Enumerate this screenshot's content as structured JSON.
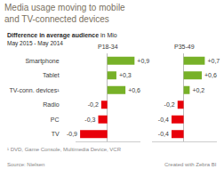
{
  "chart_data": {
    "type": "bar",
    "orientation": "horizontal",
    "title": [
      "Media usage moving to mobile",
      "and TV-connected devices"
    ],
    "subtitle": [
      "Difference in average audience",
      "in Mio"
    ],
    "annotations": [
      "May 2015 - May 2014",
      "¹ DVD, Game Console, Multimedia Device, VCR",
      "Source: Nielsen",
      "Created with Zebra BI"
    ],
    "categories": [
      "Smartphone",
      "Tablet",
      "TV-conn. devices¹",
      "Radio",
      "PC",
      "TV"
    ],
    "series": [
      {
        "name": "P18-34",
        "values": [
          0.9,
          0.3,
          0.6,
          -0.2,
          -0.3,
          -0.9
        ],
        "value_labels": [
          "+0,9",
          "+0,3",
          "+0,6",
          "-0,2",
          "-0,3",
          "-0,9"
        ],
        "colors": [
          "#77b128",
          "#77b128",
          "#77b128",
          "#e8000a",
          "#e8000a",
          "#e8000a"
        ]
      },
      {
        "name": "P35-49",
        "values": [
          0.7,
          0.6,
          0.2,
          -0.2,
          -0.4,
          -0.4
        ],
        "value_labels": [
          "+0,7",
          "+0,6",
          "+0,2",
          "-0,2",
          "-0,4",
          "-0,4"
        ],
        "colors": [
          "#77b128",
          "#77b128",
          "#77b128",
          "#e8000a",
          "#e8000a",
          "#e8000a"
        ]
      }
    ],
    "xlim": [
      -1.05,
      1.1
    ],
    "grid": false,
    "data_labels": true,
    "tick_labels": "y"
  }
}
